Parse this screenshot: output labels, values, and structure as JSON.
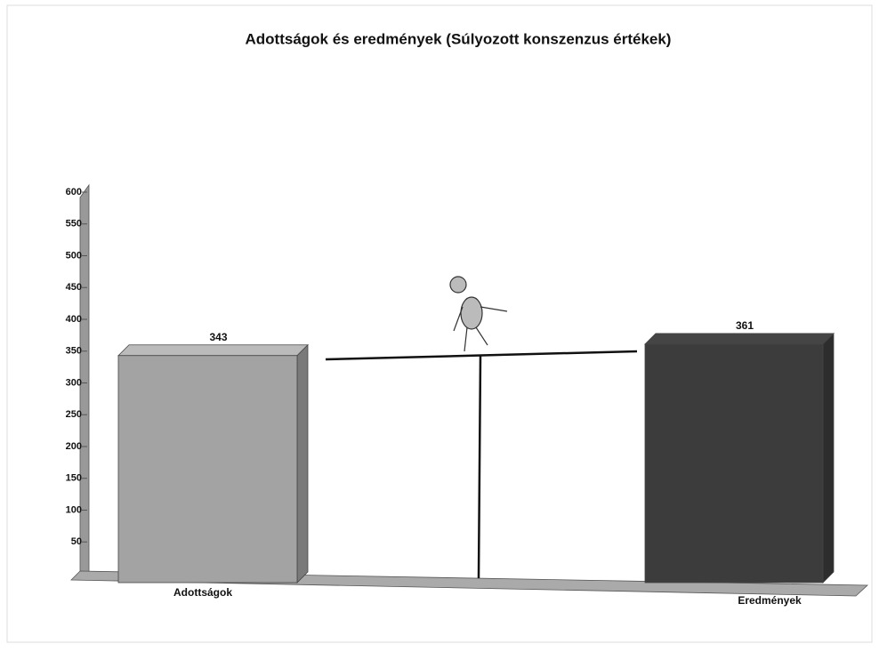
{
  "chart_data": {
    "type": "bar",
    "title": "Adottságok és eredmények (Súlyozott konszenzus értékek)",
    "categories": [
      "Adottságok",
      "Eredmények"
    ],
    "values": [
      343,
      361
    ],
    "colors": [
      "#a3a3a3",
      "#3c3c3c"
    ],
    "ylim": [
      0,
      600
    ],
    "yticks": [
      50,
      100,
      150,
      200,
      250,
      300,
      350,
      400,
      450,
      500,
      550,
      600
    ]
  }
}
